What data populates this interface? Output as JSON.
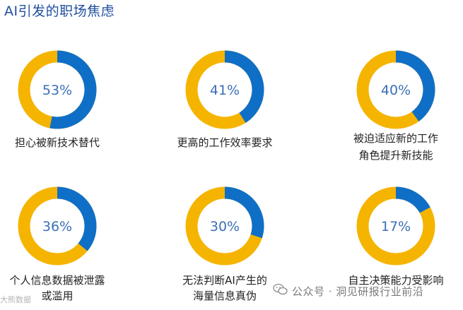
{
  "title": "AI引发的职场焦虑",
  "colors": {
    "primary": "#0f6fc6",
    "remainder": "#f5b400"
  },
  "chart_data": [
    {
      "type": "pie",
      "values": [
        53,
        47
      ],
      "label": "53%",
      "caption": [
        "担心被新技术替代"
      ]
    },
    {
      "type": "pie",
      "values": [
        41,
        59
      ],
      "label": "41%",
      "caption": [
        "更高的工作效率要求"
      ]
    },
    {
      "type": "pie",
      "values": [
        40,
        60
      ],
      "label": "40%",
      "caption": [
        "被迫适应新的工作",
        "角色提升新技能"
      ]
    },
    {
      "type": "pie",
      "values": [
        36,
        64
      ],
      "label": "36%",
      "caption": [
        "个人信息数据被泄露",
        "或滥用"
      ]
    },
    {
      "type": "pie",
      "values": [
        30,
        70
      ],
      "label": "30%",
      "caption": [
        "无法判断AI产生的",
        "海量信息真伪"
      ]
    },
    {
      "type": "pie",
      "values": [
        17,
        83
      ],
      "label": "17%",
      "caption": [
        "自主决策能力受影响"
      ]
    }
  ],
  "watermark": {
    "text": "公众号 · 洞见研报行业前沿",
    "left_text": "大熊数据"
  }
}
